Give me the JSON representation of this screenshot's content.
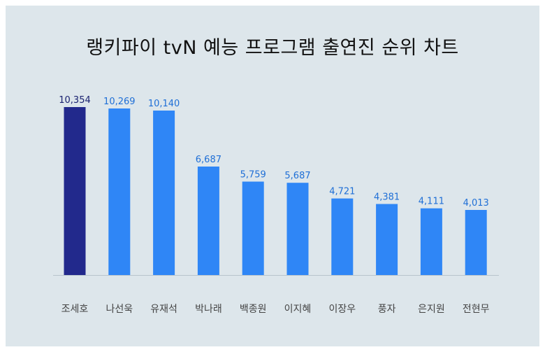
{
  "chart_data": {
    "type": "bar",
    "title": "랭키파이 tvN 예능 프로그램 출연진 순위 차트",
    "categories": [
      "조세호",
      "나선욱",
      "유재석",
      "박나래",
      "백종원",
      "이지혜",
      "이장우",
      "풍자",
      "은지원",
      "전현무"
    ],
    "values": [
      10354,
      10269,
      10140,
      6687,
      5759,
      5687,
      4721,
      4381,
      4111,
      4013
    ],
    "value_labels": [
      "10,354",
      "10,269",
      "10,140",
      "6,687",
      "5,759",
      "5,687",
      "4,721",
      "4,381",
      "4,111",
      "4,013"
    ],
    "ylim": [
      0,
      11000
    ],
    "grid": false,
    "legend": "none",
    "colors": {
      "highlight_bar": "#22298c",
      "bar": "#2f86f6",
      "highlight_label": "#1a2270",
      "label": "#1f6fd6",
      "category_label": "#444444",
      "baseline": "#b8c4cc"
    }
  }
}
